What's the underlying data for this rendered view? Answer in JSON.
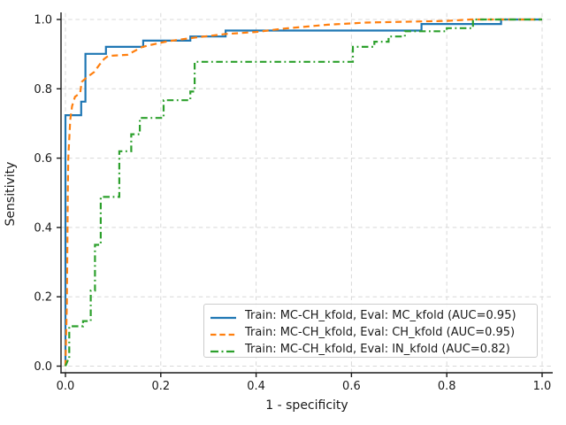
{
  "chart_data": {
    "type": "line",
    "subtype": "roc-curves",
    "title": "",
    "xlabel": "1 - specificity",
    "ylabel": "Sensitivity",
    "xlim": [
      -0.02,
      1.02
    ],
    "ylim": [
      -0.02,
      1.02
    ],
    "xticks": [
      0.0,
      0.2,
      0.4,
      0.6,
      0.8,
      1.0
    ],
    "yticks": [
      0.0,
      0.2,
      0.4,
      0.6,
      0.8,
      1.0
    ],
    "xtick_labels": [
      "0.0",
      "0.2",
      "0.4",
      "0.6",
      "0.8",
      "1.0"
    ],
    "ytick_labels": [
      "0.0",
      "0.2",
      "0.4",
      "0.6",
      "0.8",
      "1.0"
    ],
    "grid": true,
    "grid_style": "dashed",
    "legend_position": "lower right",
    "series": [
      {
        "name": "Train: MC-CH_kfold, Eval: MC_kfold (AUC=0.95)",
        "auc": 0.95,
        "color": "#1f77b4",
        "style": "solid",
        "points": [
          [
            0,
            0
          ],
          [
            0,
            0.724
          ],
          [
            0.033,
            0.724
          ],
          [
            0.033,
            0.763
          ],
          [
            0.042,
            0.763
          ],
          [
            0.042,
            0.901
          ],
          [
            0.085,
            0.901
          ],
          [
            0.085,
            0.921
          ],
          [
            0.163,
            0.921
          ],
          [
            0.163,
            0.939
          ],
          [
            0.262,
            0.939
          ],
          [
            0.262,
            0.951
          ],
          [
            0.336,
            0.951
          ],
          [
            0.336,
            0.968
          ],
          [
            0.747,
            0.968
          ],
          [
            0.747,
            0.987
          ],
          [
            0.914,
            0.987
          ],
          [
            0.914,
            1.0
          ],
          [
            1.0,
            1.0
          ]
        ]
      },
      {
        "name": "Train: MC-CH_kfold, Eval: CH_kfold (AUC=0.95)",
        "auc": 0.95,
        "color": "#ff7f0e",
        "style": "dashed",
        "points": [
          [
            0,
            0
          ],
          [
            0.003,
            0.18
          ],
          [
            0.004,
            0.35
          ],
          [
            0.005,
            0.51
          ],
          [
            0.006,
            0.6
          ],
          [
            0.01,
            0.71
          ],
          [
            0.014,
            0.75
          ],
          [
            0.02,
            0.777
          ],
          [
            0.031,
            0.788
          ],
          [
            0.034,
            0.82
          ],
          [
            0.043,
            0.831
          ],
          [
            0.051,
            0.839
          ],
          [
            0.06,
            0.848
          ],
          [
            0.071,
            0.869
          ],
          [
            0.081,
            0.886
          ],
          [
            0.09,
            0.895
          ],
          [
            0.13,
            0.898
          ],
          [
            0.16,
            0.92
          ],
          [
            0.173,
            0.925
          ],
          [
            0.214,
            0.937
          ],
          [
            0.262,
            0.946
          ],
          [
            0.336,
            0.958
          ],
          [
            0.4,
            0.964
          ],
          [
            0.46,
            0.974
          ],
          [
            0.55,
            0.985
          ],
          [
            0.63,
            0.991
          ],
          [
            0.8,
            0.996
          ],
          [
            0.85,
            1.0
          ],
          [
            1.0,
            1.0
          ]
        ]
      },
      {
        "name": "Train: MC-CH_kfold, Eval: IN_kfold (AUC=0.82)",
        "auc": 0.82,
        "color": "#2ca02c",
        "style": "dashdot",
        "points": [
          [
            0,
            0
          ],
          [
            0.006,
            0.02
          ],
          [
            0.008,
            0.02
          ],
          [
            0.008,
            0.115
          ],
          [
            0.037,
            0.115
          ],
          [
            0.037,
            0.13
          ],
          [
            0.053,
            0.13
          ],
          [
            0.053,
            0.218
          ],
          [
            0.062,
            0.218
          ],
          [
            0.062,
            0.35
          ],
          [
            0.074,
            0.35
          ],
          [
            0.074,
            0.488
          ],
          [
            0.113,
            0.488
          ],
          [
            0.113,
            0.62
          ],
          [
            0.138,
            0.62
          ],
          [
            0.138,
            0.669
          ],
          [
            0.156,
            0.669
          ],
          [
            0.156,
            0.716
          ],
          [
            0.206,
            0.716
          ],
          [
            0.206,
            0.767
          ],
          [
            0.262,
            0.767
          ],
          [
            0.262,
            0.792
          ],
          [
            0.271,
            0.792
          ],
          [
            0.271,
            0.878
          ],
          [
            0.603,
            0.878
          ],
          [
            0.603,
            0.921
          ],
          [
            0.648,
            0.921
          ],
          [
            0.648,
            0.936
          ],
          [
            0.678,
            0.936
          ],
          [
            0.678,
            0.951
          ],
          [
            0.712,
            0.951
          ],
          [
            0.712,
            0.966
          ],
          [
            0.8,
            0.966
          ],
          [
            0.8,
            0.975
          ],
          [
            0.855,
            0.975
          ],
          [
            0.855,
            1.0
          ],
          [
            1.0,
            1.0
          ]
        ]
      }
    ],
    "colors": {
      "grid": "#d8d8d8",
      "spine": "#1a1a1a",
      "tick_label": "#1a1a1a",
      "background": "#ffffff"
    }
  }
}
